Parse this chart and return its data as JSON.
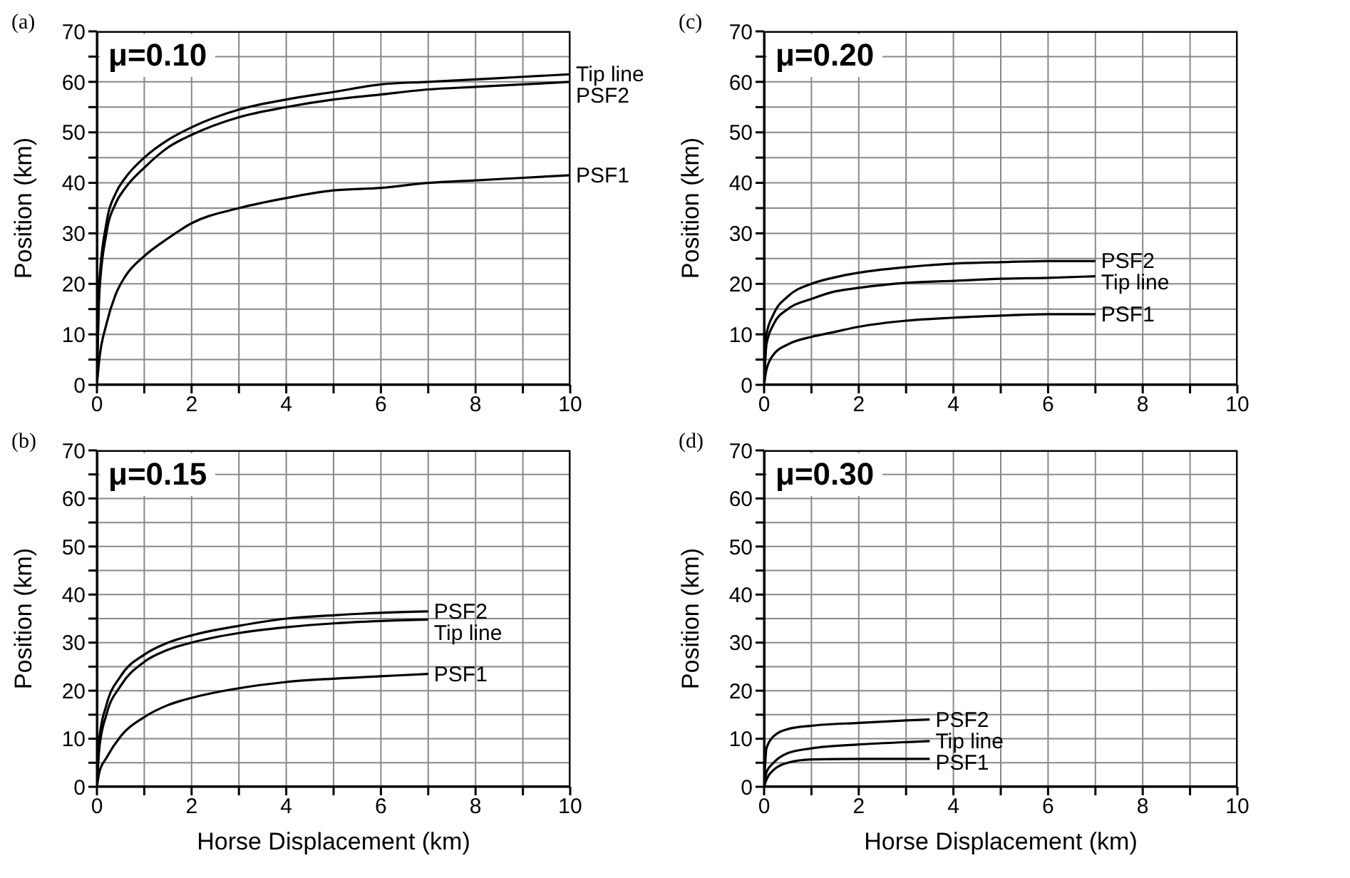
{
  "chart_data": [
    {
      "type": "line",
      "title": "(a)",
      "subtitle": "μ=0.10",
      "ylabel": "Position (km)",
      "xlim": [
        0,
        10
      ],
      "ylim": [
        0,
        70
      ],
      "grid": true,
      "marker": "none",
      "line_style": "solid",
      "xticks": [
        0,
        {
          "value": 1,
          "label": null
        },
        2,
        {
          "value": 3,
          "label": null
        },
        4,
        {
          "value": 5,
          "label": null
        },
        6,
        {
          "value": 7,
          "label": null
        },
        8,
        {
          "value": 9,
          "label": null
        },
        10
      ],
      "yticks": [
        0,
        {
          "value": 5,
          "label": null
        },
        10,
        {
          "value": 15,
          "label": null
        },
        20,
        {
          "value": 25,
          "label": null
        },
        30,
        {
          "value": 35,
          "label": null
        },
        40,
        {
          "value": 45,
          "label": null
        },
        50,
        {
          "value": 55,
          "label": null
        },
        60,
        {
          "value": 65,
          "label": null
        },
        70
      ],
      "series": [
        {
          "name": "Tip line",
          "color": "#000000",
          "x": [
            0,
            0.05,
            0.2,
            0.4,
            0.6,
            1,
            1.5,
            2,
            3,
            4,
            5,
            6,
            7,
            8,
            9,
            10
          ],
          "values": [
            0,
            20,
            32,
            38,
            41,
            45,
            48.5,
            51,
            54.5,
            56.5,
            58,
            59.5,
            60,
            60.5,
            61,
            61.5
          ]
        },
        {
          "name": "PSF2",
          "color": "#000000",
          "x": [
            0,
            0.05,
            0.2,
            0.4,
            0.6,
            1,
            1.5,
            2,
            3,
            4,
            5,
            6,
            7,
            8,
            9,
            10
          ],
          "values": [
            0,
            18,
            30,
            36,
            39,
            43,
            47,
            49.5,
            53,
            55,
            56.5,
            57.5,
            58.5,
            59,
            59.5,
            60
          ]
        },
        {
          "name": "PSF1",
          "color": "#000000",
          "x": [
            0,
            0.05,
            0.2,
            0.4,
            0.6,
            1,
            1.5,
            2,
            3,
            4,
            5,
            6,
            7,
            8,
            9,
            10
          ],
          "values": [
            0,
            5,
            12,
            18,
            21.5,
            25.5,
            29,
            32,
            35,
            37,
            38.5,
            39,
            40,
            40.5,
            41,
            41.5
          ]
        }
      ]
    },
    {
      "type": "line",
      "title": "(c)",
      "subtitle": "μ=0.20",
      "ylabel": "Position (km)",
      "xlim": [
        0,
        10
      ],
      "ylim": [
        0,
        70
      ],
      "grid": true,
      "marker": "none",
      "line_style": "solid",
      "xticks": [
        0,
        {
          "value": 1,
          "label": null
        },
        2,
        {
          "value": 3,
          "label": null
        },
        4,
        {
          "value": 5,
          "label": null
        },
        6,
        {
          "value": 7,
          "label": null
        },
        8,
        {
          "value": 9,
          "label": null
        },
        10
      ],
      "yticks": [
        0,
        {
          "value": 5,
          "label": null
        },
        10,
        {
          "value": 15,
          "label": null
        },
        20,
        {
          "value": 25,
          "label": null
        },
        30,
        {
          "value": 35,
          "label": null
        },
        40,
        {
          "value": 45,
          "label": null
        },
        50,
        {
          "value": 55,
          "label": null
        },
        60,
        {
          "value": 65,
          "label": null
        },
        70
      ],
      "series": [
        {
          "name": "PSF2",
          "color": "#000000",
          "x": [
            0,
            0.05,
            0.2,
            0.5,
            1,
            1.5,
            2,
            3,
            4,
            5,
            6,
            7
          ],
          "values": [
            0,
            10,
            14,
            17.5,
            20,
            21.3,
            22.2,
            23.3,
            24,
            24.3,
            24.5,
            24.5
          ]
        },
        {
          "name": "Tip line",
          "color": "#000000",
          "x": [
            0,
            0.05,
            0.2,
            0.5,
            1,
            1.5,
            2,
            3,
            4,
            5,
            6,
            7
          ],
          "values": [
            0,
            8,
            12,
            15,
            17,
            18.5,
            19.2,
            20.2,
            20.6,
            21,
            21.2,
            21.5
          ]
        },
        {
          "name": "PSF1",
          "color": "#000000",
          "x": [
            0,
            0.05,
            0.2,
            0.5,
            1,
            1.5,
            2,
            3,
            4,
            5,
            6,
            7
          ],
          "values": [
            0,
            3,
            6,
            8,
            9.5,
            10.5,
            11.5,
            12.7,
            13.3,
            13.7,
            14,
            14
          ]
        }
      ]
    },
    {
      "type": "line",
      "title": "(b)",
      "subtitle": "μ=0.15",
      "xlabel": "Horse Displacement (km)",
      "ylabel": "Position (km)",
      "xlim": [
        0,
        10
      ],
      "ylim": [
        0,
        70
      ],
      "grid": true,
      "marker": "none",
      "line_style": "solid",
      "xticks": [
        0,
        {
          "value": 1,
          "label": null
        },
        2,
        {
          "value": 3,
          "label": null
        },
        4,
        {
          "value": 5,
          "label": null
        },
        6,
        {
          "value": 7,
          "label": null
        },
        8,
        {
          "value": 9,
          "label": null
        },
        10
      ],
      "yticks": [
        0,
        {
          "value": 5,
          "label": null
        },
        10,
        {
          "value": 15,
          "label": null
        },
        20,
        {
          "value": 25,
          "label": null
        },
        30,
        {
          "value": 35,
          "label": null
        },
        40,
        {
          "value": 45,
          "label": null
        },
        50,
        {
          "value": 55,
          "label": null
        },
        60,
        {
          "value": 65,
          "label": null
        },
        70
      ],
      "series": [
        {
          "name": "PSF2",
          "color": "#000000",
          "x": [
            0,
            0.05,
            0.2,
            0.5,
            1,
            1.5,
            2,
            3,
            4,
            5,
            6,
            7
          ],
          "values": [
            0,
            10,
            17,
            23,
            27.5,
            30,
            31.5,
            33.5,
            35,
            35.7,
            36.2,
            36.5
          ]
        },
        {
          "name": "Tip line",
          "color": "#000000",
          "x": [
            0,
            0.05,
            0.2,
            0.5,
            1,
            1.5,
            2,
            3,
            4,
            5,
            6,
            7
          ],
          "values": [
            0,
            8,
            15,
            21,
            26,
            28.5,
            30,
            32,
            33.2,
            34,
            34.5,
            34.8
          ]
        },
        {
          "name": "PSF1",
          "color": "#000000",
          "x": [
            0,
            0.05,
            0.2,
            0.5,
            1,
            1.5,
            2,
            3,
            4,
            5,
            6,
            7
          ],
          "values": [
            0,
            3,
            6,
            10.5,
            14.5,
            17,
            18.5,
            20.5,
            21.8,
            22.5,
            23,
            23.5
          ]
        }
      ]
    },
    {
      "type": "line",
      "title": "(d)",
      "subtitle": "μ=0.30",
      "xlabel": "Horse Displacement (km)",
      "ylabel": "Position (km)",
      "xlim": [
        0,
        10
      ],
      "ylim": [
        0,
        70
      ],
      "grid": true,
      "marker": "none",
      "line_style": "solid",
      "xticks": [
        0,
        {
          "value": 1,
          "label": null
        },
        2,
        {
          "value": 3,
          "label": null
        },
        4,
        {
          "value": 5,
          "label": null
        },
        6,
        {
          "value": 7,
          "label": null
        },
        8,
        {
          "value": 9,
          "label": null
        },
        10
      ],
      "yticks": [
        0,
        {
          "value": 5,
          "label": null
        },
        10,
        {
          "value": 15,
          "label": null
        },
        20,
        {
          "value": 25,
          "label": null
        },
        30,
        {
          "value": 35,
          "label": null
        },
        40,
        {
          "value": 45,
          "label": null
        },
        50,
        {
          "value": 55,
          "label": null
        },
        60,
        {
          "value": 65,
          "label": null
        },
        70
      ],
      "series": [
        {
          "name": "PSF2",
          "color": "#000000",
          "x": [
            0,
            0.05,
            0.2,
            0.5,
            1,
            2,
            3,
            3.5
          ],
          "values": [
            0,
            8,
            10.5,
            12,
            12.7,
            13.3,
            13.8,
            14
          ]
        },
        {
          "name": "Tip line",
          "color": "#000000",
          "x": [
            0,
            0.05,
            0.2,
            0.5,
            1,
            2,
            3,
            3.5
          ],
          "values": [
            0,
            3,
            5,
            7,
            8,
            8.8,
            9.3,
            9.5
          ]
        },
        {
          "name": "PSF1",
          "color": "#000000",
          "x": [
            0,
            0.05,
            0.2,
            0.5,
            1,
            2,
            3,
            3.5
          ],
          "values": [
            0,
            1.5,
            3.5,
            5,
            5.7,
            5.8,
            5.8,
            5.8
          ]
        }
      ]
    }
  ]
}
